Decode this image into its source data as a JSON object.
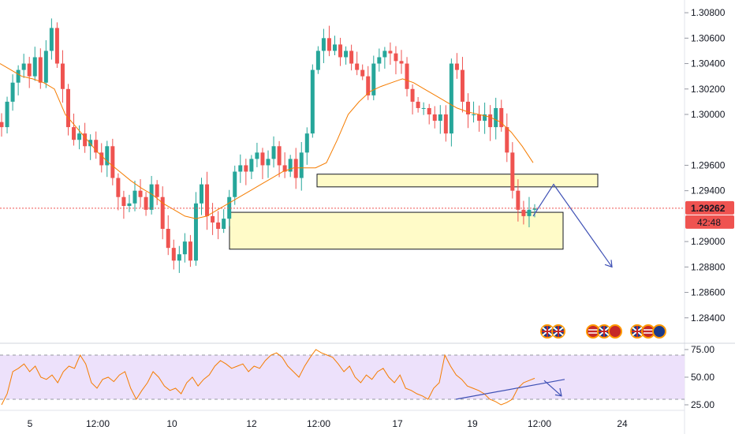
{
  "chart_data": [
    {
      "type": "candlestick",
      "title": "",
      "price_axis": {
        "ylim": [
          1.282,
          1.309
        ],
        "ticks": [
          "1.30800",
          "1.30600",
          "1.30400",
          "1.30200",
          "1.30000",
          "1.29600",
          "1.29400",
          "1.29000",
          "1.28800",
          "1.28600",
          "1.28400"
        ],
        "tick_values": [
          1.308,
          1.306,
          1.304,
          1.302,
          1.3,
          1.296,
          1.294,
          1.29,
          1.288,
          1.286,
          1.284
        ]
      },
      "current_price": {
        "label": "1.29262",
        "value": 1.29262,
        "countdown": "42:48",
        "color": "#ef5350"
      },
      "x_axis": {
        "labels": [
          "5",
          "12:00",
          "10",
          "12",
          "12:00",
          "17",
          "19",
          "12:00",
          "24"
        ]
      },
      "colors": {
        "up": "#26a69a",
        "down": "#ef5350",
        "ma": "#f57c00",
        "zone_fill": "#fffbc8",
        "zone_stroke": "#131722",
        "projection": "#3f51b5"
      },
      "ohlc_description": "Candlestick price path approximated from the screenshot (close values per bar).",
      "close_path": [
        1.299,
        1.301,
        1.3025,
        1.3035,
        1.304,
        1.303,
        1.3045,
        1.3025,
        1.305,
        1.3068,
        1.304,
        1.302,
        1.299,
        1.298,
        1.2985,
        1.2975,
        1.298,
        1.297,
        1.296,
        1.2975,
        1.295,
        1.2935,
        1.2928,
        1.293,
        1.294,
        1.2935,
        1.2925,
        1.2945,
        1.2935,
        1.291,
        1.2895,
        1.2885,
        1.289,
        1.29,
        1.2885,
        1.293,
        1.2945,
        1.292,
        1.2915,
        1.291,
        1.2918,
        1.2935,
        1.2955,
        1.296,
        1.2955,
        1.2965,
        1.297,
        1.296,
        1.2965,
        1.2975,
        1.296,
        1.2955,
        1.2965,
        1.295,
        1.297,
        1.2985,
        1.3035,
        1.305,
        1.306,
        1.305,
        1.3055,
        1.3045,
        1.305,
        1.304,
        1.3035,
        1.303,
        1.3015,
        1.304,
        1.3045,
        1.305,
        1.3048,
        1.3042,
        1.304,
        1.302,
        1.301,
        1.3005,
        1.3005,
        1.3,
        1.2995,
        1.3,
        1.2985,
        1.304,
        1.3035,
        1.301,
        1.3,
        1.3,
        1.2995,
        1.3,
        1.299,
        1.3005,
        1.299,
        1.297,
        1.294,
        1.2925,
        1.292,
        1.2925,
        1.2926
      ],
      "moving_average": [
        1.304,
        1.3035,
        1.303,
        1.3028,
        1.3025,
        1.302,
        1.3,
        1.299,
        1.298,
        1.297,
        1.2962,
        1.2955,
        1.2948,
        1.2942,
        1.2937,
        1.293,
        1.2925,
        1.292,
        1.2918,
        1.292,
        1.2925,
        1.293,
        1.2935,
        1.294,
        1.2945,
        1.295,
        1.2955,
        1.2958,
        1.2958,
        1.2958,
        1.2962,
        1.298,
        1.3,
        1.301,
        1.3018,
        1.3022,
        1.3025,
        1.3028,
        1.3025,
        1.302,
        1.3015,
        1.301,
        1.3005,
        1.3002,
        1.3,
        1.2998,
        1.2994,
        1.2986,
        1.2975,
        1.2962
      ],
      "zones": [
        {
          "name": "resistance-zone",
          "top": 1.2953,
          "bottom": 1.2943
        },
        {
          "name": "support-zone",
          "top": 1.2923,
          "bottom": 1.2894
        }
      ],
      "projection": {
        "path": [
          1.292,
          1.2945,
          1.288
        ]
      }
    },
    {
      "type": "line",
      "title": "",
      "indicator": "RSI",
      "y_axis": {
        "ylim": [
          20,
          80
        ],
        "ticks": [
          "75.00",
          "50.00",
          "25.00"
        ],
        "tick_values": [
          75,
          50,
          25
        ]
      },
      "band": {
        "upper": 70,
        "lower": 30,
        "fill": "#ede1fb"
      },
      "series": [
        {
          "values": [
            25,
            35,
            55,
            58,
            62,
            55,
            60,
            50,
            48,
            52,
            45,
            55,
            60,
            58,
            70,
            62,
            45,
            40,
            48,
            50,
            46,
            52,
            55,
            40,
            30,
            38,
            45,
            55,
            50,
            42,
            38,
            40,
            35,
            45,
            50,
            42,
            48,
            52,
            60,
            65,
            62,
            58,
            60,
            62,
            55,
            60,
            58,
            65,
            70,
            72,
            68,
            60,
            55,
            50,
            60,
            68,
            75,
            72,
            70,
            68,
            62,
            55,
            60,
            50,
            45,
            52,
            48,
            55,
            58,
            50,
            45,
            52,
            40,
            38,
            35,
            33,
            30,
            40,
            45,
            70,
            60,
            52,
            48,
            42,
            40,
            38,
            35,
            30,
            28,
            25,
            27,
            30,
            40,
            45,
            47,
            49
          ]
        }
      ],
      "divergence_lines": [
        [
          30,
          48
        ],
        [
          47,
          33
        ]
      ]
    }
  ]
}
